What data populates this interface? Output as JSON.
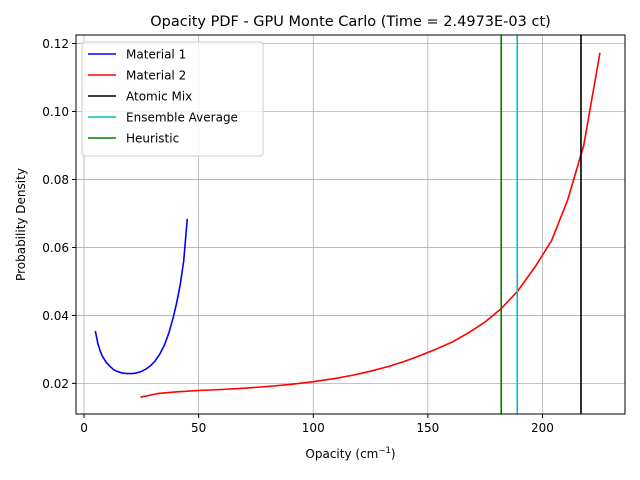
{
  "chart_data": {
    "type": "line",
    "title": "Opacity PDF - GPU Monte Carlo (Time = 2.4973E-03 ct)",
    "xlabel_main": "Opacity (cm",
    "xlabel_sup": "−1",
    "xlabel_end": ")",
    "ylabel": "Probability Density",
    "xlim": [
      -3.5,
      236
    ],
    "ylim": [
      0.011,
      0.1225
    ],
    "xticks": [
      0,
      50,
      100,
      150,
      200
    ],
    "yticks": [
      0.02,
      0.04,
      0.06,
      0.08,
      0.1,
      0.12
    ],
    "ytick_labels": [
      "0.02",
      "0.04",
      "0.06",
      "0.08",
      "0.10",
      "0.12"
    ],
    "grid": true,
    "legend_position": "upper left",
    "series": [
      {
        "name": "Material 1",
        "color": "#0000ff",
        "kind": "line",
        "x": [
          5,
          6,
          7,
          8,
          9.5,
          11,
          13,
          15,
          17,
          19,
          21,
          23,
          25,
          27,
          29,
          31,
          33,
          35,
          37,
          39,
          40.5,
          42,
          43.5,
          45
        ],
        "y": [
          0.0352,
          0.0318,
          0.0296,
          0.028,
          0.0264,
          0.0252,
          0.024,
          0.0234,
          0.023,
          0.0229,
          0.0229,
          0.0231,
          0.0235,
          0.0242,
          0.0252,
          0.0266,
          0.0286,
          0.0312,
          0.0348,
          0.0396,
          0.044,
          0.0492,
          0.056,
          0.0682
        ]
      },
      {
        "name": "Material 2",
        "color": "#ff0000",
        "kind": "line",
        "x": [
          25,
          32,
          40,
          50,
          60,
          70,
          80,
          90,
          100,
          110,
          118,
          125,
          133,
          140,
          147,
          154,
          161,
          168,
          175,
          182,
          189,
          197,
          204,
          211,
          218,
          225
        ],
        "y": [
          0.016,
          0.017,
          0.0175,
          0.0179,
          0.0182,
          0.0186,
          0.0191,
          0.0197,
          0.0205,
          0.0215,
          0.0225,
          0.0236,
          0.025,
          0.0265,
          0.0283,
          0.0302,
          0.0323,
          0.035,
          0.0381,
          0.042,
          0.047,
          0.0545,
          0.062,
          0.074,
          0.09,
          0.117
        ]
      },
      {
        "name": "Atomic Mix",
        "color": "#000000",
        "kind": "vline",
        "x": 216.8
      },
      {
        "name": "Ensemble Average",
        "color": "#00bfbf",
        "kind": "vline",
        "x": 189.0
      },
      {
        "name": "Heuristic",
        "color": "#008000",
        "kind": "vline",
        "x": 182.0
      }
    ]
  }
}
